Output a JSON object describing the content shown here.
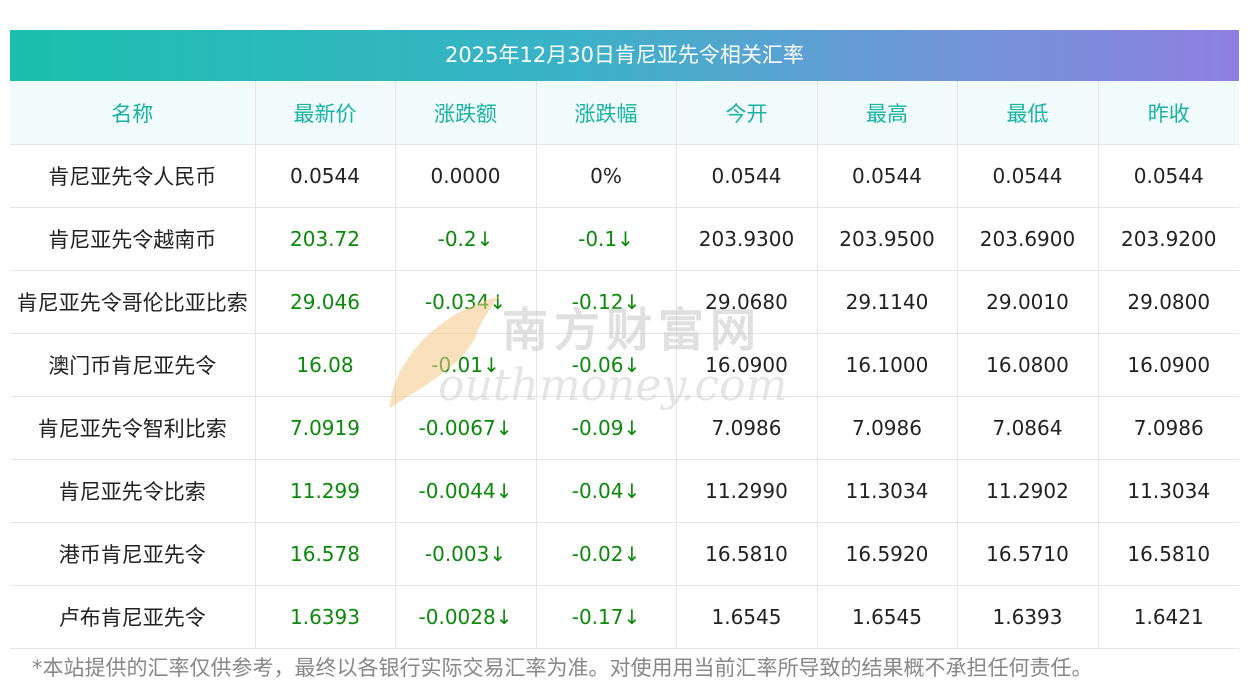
{
  "title": "2025年12月30日肯尼亚先令相关汇率",
  "headers": [
    "名称",
    "最新价",
    "涨跌额",
    "涨跌幅",
    "今开",
    "最高",
    "最低",
    "昨收"
  ],
  "rows": [
    {
      "name": "肯尼亚先令人民币",
      "latest": "0.0544",
      "change": "0.0000",
      "pct": "0%",
      "open": "0.0544",
      "high": "0.0544",
      "low": "0.0544",
      "prev": "0.0544",
      "green": false
    },
    {
      "name": "肯尼亚先令越南币",
      "latest": "203.72",
      "change": "-0.2↓",
      "pct": "-0.1↓",
      "open": "203.9300",
      "high": "203.9500",
      "low": "203.6900",
      "prev": "203.9200",
      "green": true
    },
    {
      "name": "肯尼亚先令哥伦比亚比索",
      "latest": "29.046",
      "change": "-0.034↓",
      "pct": "-0.12↓",
      "open": "29.0680",
      "high": "29.1140",
      "low": "29.0010",
      "prev": "29.0800",
      "green": true
    },
    {
      "name": "澳门币肯尼亚先令",
      "latest": "16.08",
      "change": "-0.01↓",
      "pct": "-0.06↓",
      "open": "16.0900",
      "high": "16.1000",
      "low": "16.0800",
      "prev": "16.0900",
      "green": true
    },
    {
      "name": "肯尼亚先令智利比索",
      "latest": "7.0919",
      "change": "-0.0067↓",
      "pct": "-0.09↓",
      "open": "7.0986",
      "high": "7.0986",
      "low": "7.0864",
      "prev": "7.0986",
      "green": true
    },
    {
      "name": "肯尼亚先令比索",
      "latest": "11.299",
      "change": "-0.0044↓",
      "pct": "-0.04↓",
      "open": "11.2990",
      "high": "11.3034",
      "low": "11.2902",
      "prev": "11.3034",
      "green": true
    },
    {
      "name": "港币肯尼亚先令",
      "latest": "16.578",
      "change": "-0.003↓",
      "pct": "-0.02↓",
      "open": "16.5810",
      "high": "16.5920",
      "low": "16.5710",
      "prev": "16.5810",
      "green": true
    },
    {
      "name": "卢布肯尼亚先令",
      "latest": "1.6393",
      "change": "-0.0028↓",
      "pct": "-0.17↓",
      "open": "1.6545",
      "high": "1.6545",
      "low": "1.6393",
      "prev": "1.6421",
      "green": true
    }
  ],
  "footer": "*本站提供的汇率仅供参考，最终以各银行实际交易汇率为准。对使用用当前汇率所导致的结果概不承担任何责任。",
  "watermark": {
    "cn": "南方财富网",
    "en": "outhmoney.com"
  },
  "colors": {
    "green": "#0a8a0a",
    "header_text": "#17b3a3",
    "title_start": "#1bbfae",
    "title_end": "#8e80e0"
  }
}
